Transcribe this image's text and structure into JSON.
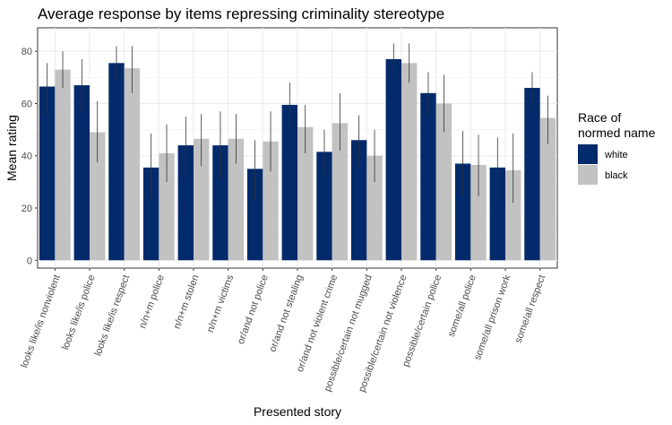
{
  "chart_data": {
    "type": "bar",
    "title": "Average response by items repressing criminality stereotype",
    "xlabel": "Presented story",
    "ylabel": "Mean rating",
    "ylim": [
      -3,
      89
    ],
    "yticks": [
      0,
      20,
      40,
      60,
      80
    ],
    "grid": true,
    "legend": {
      "title_lines": [
        "Race of",
        "normed name"
      ],
      "placement": "right"
    },
    "categories": [
      "looks like/is nonviolent",
      "looks like/is police",
      "looks like/is respect",
      "n/n+m police",
      "n/n+m stolen",
      "n/n+m victims",
      "or/and not police",
      "or/and not stealing",
      "or/and not violent crime",
      "possible/certain not mugged",
      "possible/certain not violence",
      "possible/certain police",
      "some/all police",
      "some/all prison work",
      "some/all respect"
    ],
    "series": [
      {
        "name": "white",
        "color": "#032a6b",
        "values": [
          66.5,
          67,
          75.5,
          35.5,
          44,
          44,
          35,
          59.5,
          41.5,
          46,
          77,
          64,
          37,
          35.5,
          66
        ],
        "err_low": [
          56,
          57,
          69,
          24,
          32,
          31,
          23,
          51,
          33,
          37,
          71,
          56,
          25,
          24,
          59
        ],
        "err_high": [
          75.5,
          77,
          82,
          48.5,
          55,
          57,
          46,
          68,
          50,
          55.5,
          83,
          72,
          49.5,
          47,
          72
        ]
      },
      {
        "name": "black",
        "color": "#c2c2c2",
        "values": [
          73,
          49,
          73.5,
          41,
          46.5,
          46.5,
          45.5,
          51,
          52.5,
          40,
          75.5,
          60,
          36.5,
          34.5,
          54.5
        ],
        "err_low": [
          66,
          37.5,
          64,
          30,
          36,
          37,
          34,
          41,
          42,
          30,
          68,
          49,
          24.5,
          22,
          44.5
        ],
        "err_high": [
          80,
          61,
          82,
          52,
          56,
          56,
          57,
          59.5,
          64,
          50,
          83,
          71,
          48,
          48.5,
          63
        ]
      }
    ]
  }
}
